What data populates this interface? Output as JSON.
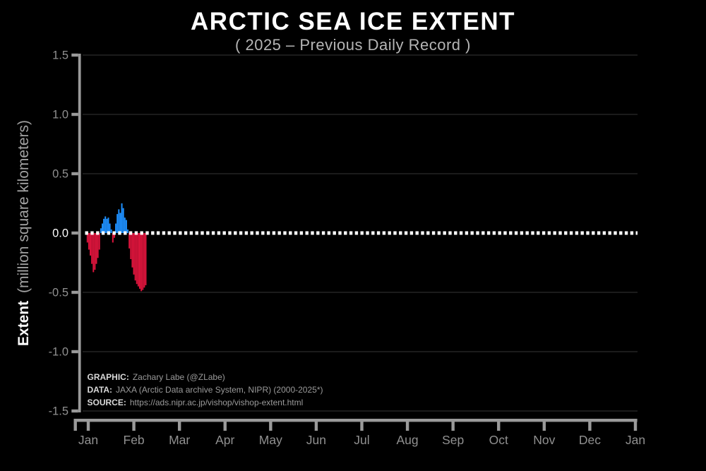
{
  "header": {
    "title": "ARCTIC SEA ICE EXTENT",
    "subtitle": "( 2025 – Previous Daily Record )"
  },
  "y_axis_label": {
    "bold": "Extent",
    "rest": " (million square kilometers)"
  },
  "y_axis": {
    "ticks": [
      {
        "label": "1.5",
        "value": 1.5
      },
      {
        "label": "1.0",
        "value": 1.0
      },
      {
        "label": "0.5",
        "value": 0.5
      },
      {
        "label": "0.0",
        "value": 0.0
      },
      {
        "label": "-0.5",
        "value": -0.5
      },
      {
        "label": "-1.0",
        "value": -1.0
      },
      {
        "label": "-1.5",
        "value": -1.5
      }
    ]
  },
  "credits": [
    {
      "label": "GRAPHIC:",
      "text": "Zachary Labe (@ZLabe)"
    },
    {
      "label": "DATA:",
      "text": "JAXA (Arctic Data archive System, NIPR) (2000-2025*)"
    },
    {
      "label": "SOURCE:",
      "text": "https://ads.nipr.ac.jp/vishop/vishop-extent.html"
    }
  ],
  "colors": {
    "background": "#000000",
    "bar_positive": "#1E90FF",
    "bar_negative": "#DC143C",
    "axis": "#9a9a9a",
    "tick_label": "#909090",
    "zero_tick_label": "#ffffff",
    "gridline": "#242424",
    "zero_line": "#ffffff",
    "credit_label": "#d9d9d9",
    "credit_text": "#9a9a9a"
  },
  "chart_data": {
    "type": "bar",
    "title": "ARCTIC SEA ICE EXTENT",
    "subtitle": "( 2025 – Previous Daily Record )",
    "ylabel": "Extent (million square kilometers)",
    "unit": "million square kilometers",
    "ylim": [
      -1.5,
      1.5
    ],
    "ytick_interval": 0.5,
    "grid": "horizontal, faint, at 0.5 intervals",
    "zero_line": {
      "value": 0,
      "style": "dotted",
      "color": "#ffffff"
    },
    "x_months": [
      "Jan",
      "Feb",
      "Mar",
      "Apr",
      "May",
      "Jun",
      "Jul",
      "Aug",
      "Sep",
      "Oct",
      "Nov",
      "Dec",
      "Jan"
    ],
    "series_name": "2025 minus previous daily record extent",
    "start_date": "Jan 1",
    "values_daily": [
      -0.08,
      -0.14,
      -0.19,
      -0.26,
      -0.33,
      -0.31,
      -0.26,
      -0.21,
      -0.14,
      0.04,
      0.08,
      0.12,
      0.14,
      0.12,
      0.13,
      0.08,
      0.03,
      -0.08,
      -0.04,
      0.08,
      0.16,
      0.2,
      0.17,
      0.25,
      0.21,
      0.13,
      0.11,
      0.03,
      -0.13,
      -0.22,
      -0.29,
      -0.35,
      -0.4,
      -0.43,
      -0.45,
      -0.47,
      -0.49,
      -0.48,
      -0.46,
      -0.44
    ]
  }
}
